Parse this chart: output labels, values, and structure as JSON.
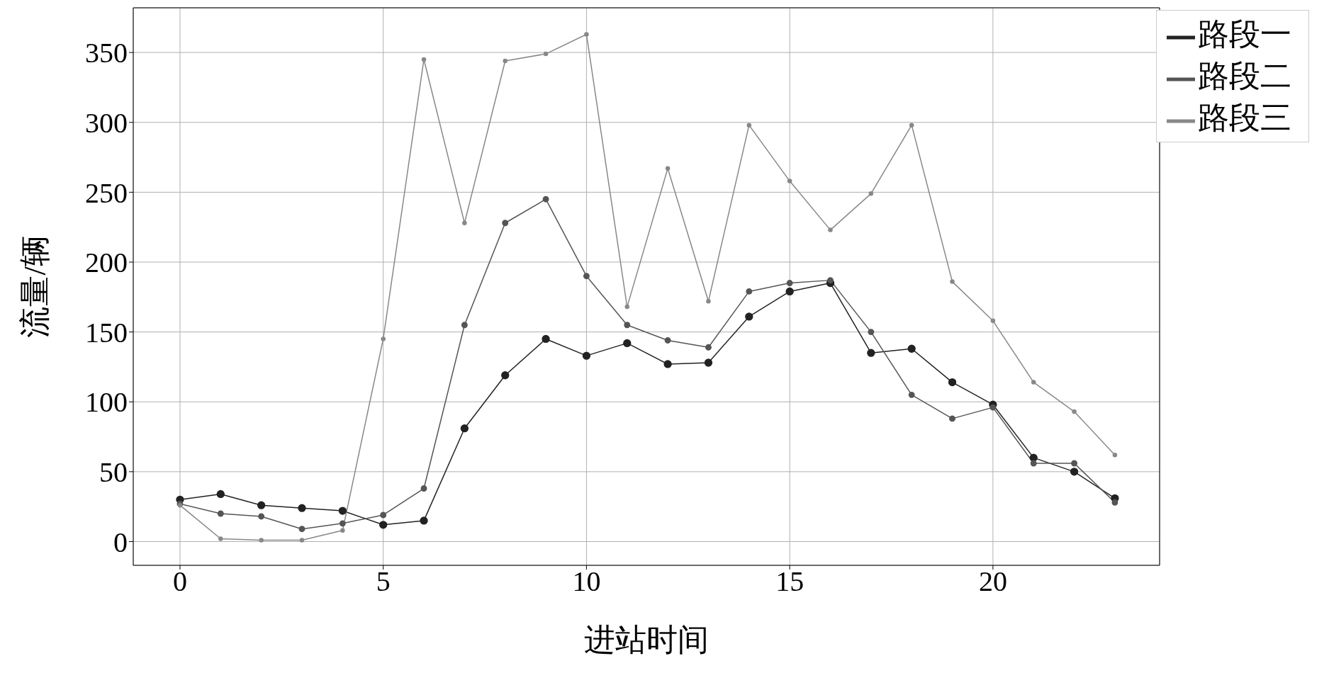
{
  "chart_data": {
    "type": "line",
    "xlabel": "进站时间",
    "ylabel": "流量/辆",
    "x": [
      0,
      1,
      2,
      3,
      4,
      5,
      6,
      7,
      8,
      9,
      10,
      11,
      12,
      13,
      14,
      15,
      16,
      17,
      18,
      19,
      20,
      21,
      22,
      23
    ],
    "series": [
      {
        "name": "路段一",
        "color": "#222222",
        "values": [
          30,
          34,
          26,
          24,
          22,
          12,
          15,
          81,
          119,
          145,
          133,
          142,
          127,
          128,
          161,
          179,
          185,
          135,
          138,
          114,
          98,
          60,
          50,
          31
        ]
      },
      {
        "name": "路段二",
        "color": "#555555",
        "values": [
          27,
          20,
          18,
          9,
          13,
          19,
          38,
          155,
          228,
          245,
          190,
          155,
          144,
          139,
          179,
          185,
          187,
          150,
          105,
          88,
          96,
          56,
          56,
          28
        ]
      },
      {
        "name": "路段三",
        "color": "#888888",
        "values": [
          26,
          2,
          1,
          1,
          8,
          145,
          345,
          228,
          344,
          349,
          363,
          168,
          267,
          172,
          298,
          258,
          223,
          249,
          298,
          186,
          158,
          114,
          93,
          62
        ]
      }
    ],
    "xlim": [
      -1.15,
      24.1
    ],
    "ylim": [
      -17,
      382
    ],
    "xticks": [
      0,
      5,
      10,
      15,
      20
    ],
    "yticks": [
      0,
      50,
      100,
      150,
      200,
      250,
      300,
      350
    ],
    "grid": true,
    "legend": "top right",
    "marker": "circle",
    "line_style": "solid"
  }
}
